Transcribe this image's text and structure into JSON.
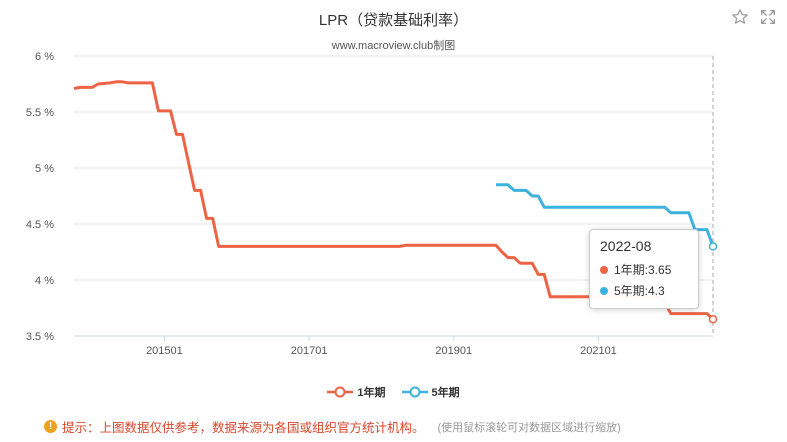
{
  "title": "LPR（贷款基础利率）",
  "subtitle": "www.macroview.club制图",
  "toolbar": {
    "star_icon": "star-icon",
    "expand_icon": "expand-icon"
  },
  "legend": [
    {
      "label": "1年期",
      "color": "#ee6344"
    },
    {
      "label": "5年期",
      "color": "#3db2de"
    }
  ],
  "tooltip": {
    "date": "2022-08",
    "rows": [
      {
        "label": "1年期:3.65",
        "color": "#ee6344"
      },
      {
        "label": "5年期:4.3",
        "color": "#3db2de"
      }
    ]
  },
  "note": {
    "text": "提示：上图数据仅供参考，数据来源为各国或组织官方统计机构。",
    "hint": "(使用鼠标滚轮可对数据区域进行缩放)"
  },
  "chart_data": {
    "type": "line",
    "x_range": [
      "2013-10",
      "2022-08"
    ],
    "ylim": [
      3.5,
      6
    ],
    "yticks": [
      3.5,
      4,
      4.5,
      5,
      5.5,
      6
    ],
    "ytick_labels": [
      "3.5 %",
      "4 %",
      "4.5 %",
      "5 %",
      "5.5 %",
      "6 %"
    ],
    "xticks": [
      "2015-01",
      "2017-01",
      "2019-01",
      "2021-01"
    ],
    "xtick_labels": [
      "201501",
      "201701",
      "201901",
      "202101"
    ],
    "grid": true,
    "legend_position": "bottom",
    "series": [
      {
        "name": "1年期",
        "color": "#ee6344",
        "points": [
          [
            "2013-10",
            5.71
          ],
          [
            "2013-11",
            5.72
          ],
          [
            "2014-01",
            5.72
          ],
          [
            "2014-02",
            5.75
          ],
          [
            "2014-04",
            5.76
          ],
          [
            "2014-05",
            5.77
          ],
          [
            "2014-06",
            5.77
          ],
          [
            "2014-07",
            5.76
          ],
          [
            "2014-11",
            5.76
          ],
          [
            "2014-12",
            5.51
          ],
          [
            "2015-02",
            5.51
          ],
          [
            "2015-03",
            5.3
          ],
          [
            "2015-04",
            5.3
          ],
          [
            "2015-05",
            5.05
          ],
          [
            "2015-06",
            4.8
          ],
          [
            "2015-07",
            4.8
          ],
          [
            "2015-08",
            4.55
          ],
          [
            "2015-09",
            4.55
          ],
          [
            "2015-10",
            4.3
          ],
          [
            "2018-04",
            4.3
          ],
          [
            "2018-05",
            4.31
          ],
          [
            "2019-08",
            4.31
          ],
          [
            "2019-09",
            4.25
          ],
          [
            "2019-10",
            4.2
          ],
          [
            "2019-11",
            4.2
          ],
          [
            "2019-12",
            4.15
          ],
          [
            "2020-02",
            4.15
          ],
          [
            "2020-03",
            4.05
          ],
          [
            "2020-04",
            4.05
          ],
          [
            "2020-05",
            3.85
          ],
          [
            "2021-11",
            3.85
          ],
          [
            "2021-12",
            3.8
          ],
          [
            "2022-01",
            3.7
          ],
          [
            "2022-07",
            3.7
          ],
          [
            "2022-08",
            3.65
          ]
        ]
      },
      {
        "name": "5年期",
        "color": "#3db2de",
        "points": [
          [
            "2019-08",
            4.85
          ],
          [
            "2019-09",
            4.85
          ],
          [
            "2019-10",
            4.85
          ],
          [
            "2019-11",
            4.8
          ],
          [
            "2019-12",
            4.8
          ],
          [
            "2020-01",
            4.8
          ],
          [
            "2020-02",
            4.75
          ],
          [
            "2020-03",
            4.75
          ],
          [
            "2020-04",
            4.65
          ],
          [
            "2021-11",
            4.65
          ],
          [
            "2021-12",
            4.65
          ],
          [
            "2022-01",
            4.6
          ],
          [
            "2022-04",
            4.6
          ],
          [
            "2022-05",
            4.45
          ],
          [
            "2022-07",
            4.45
          ],
          [
            "2022-08",
            4.3
          ]
        ]
      }
    ]
  }
}
